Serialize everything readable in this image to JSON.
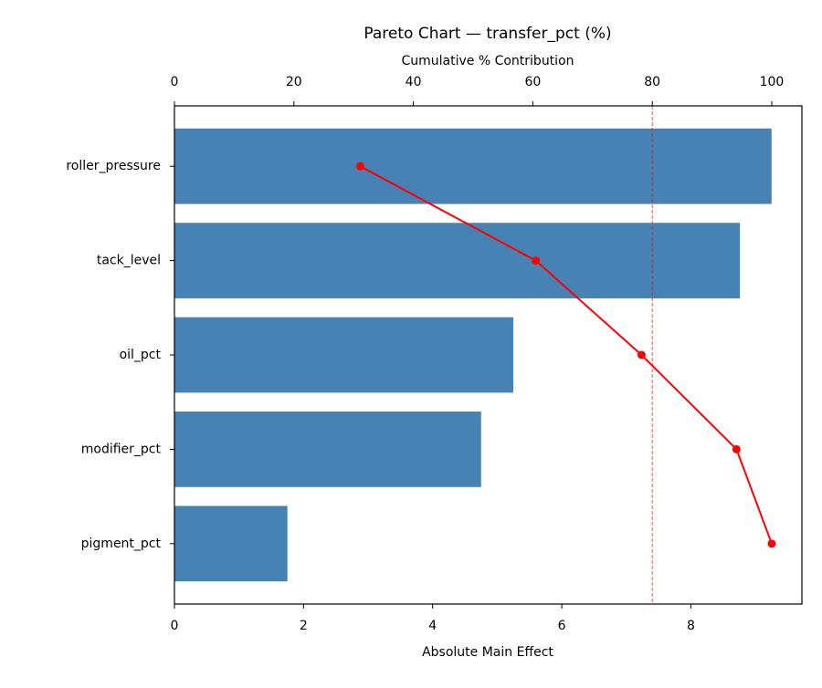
{
  "chart_data": {
    "type": "bar",
    "orientation": "horizontal",
    "title": "Pareto Chart — transfer_pct (%)",
    "xlabel": "Absolute Main Effect",
    "x2label": "Cumulative % Contribution",
    "categories": [
      "roller_pressure",
      "tack_level",
      "oil_pct",
      "modifier_pct",
      "pigment_pct"
    ],
    "values": [
      9.25,
      8.76,
      5.25,
      4.75,
      1.75
    ],
    "color": "#4682b4",
    "cumulative": {
      "values": [
        31.1,
        60.5,
        78.2,
        94.1,
        100
      ],
      "color": "#ff0000",
      "axis": "x2"
    },
    "threshold": 80,
    "threshold_color": "#ff0000",
    "xlim": [
      0,
      9.72
    ],
    "xticks": [
      0,
      2,
      4,
      6,
      8
    ],
    "x2lim": [
      0,
      105.05
    ],
    "x2ticks": [
      0,
      20,
      40,
      60,
      80,
      100
    ]
  }
}
